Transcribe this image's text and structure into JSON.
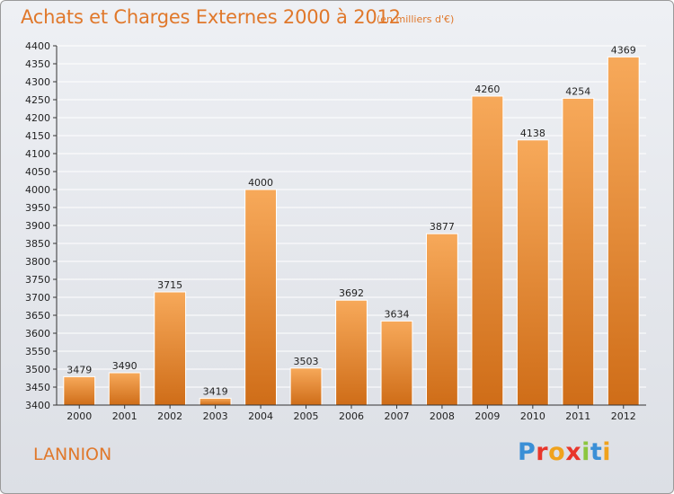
{
  "header": {
    "title": "Achats et Charges Externes 2000 à 2012",
    "subtitle": "(en milliers d'€)"
  },
  "footer": {
    "city": "LANNION",
    "logo_text": "Proxiti",
    "logo_letters": [
      {
        "ch": "P",
        "color": "#3a8fd6"
      },
      {
        "ch": "r",
        "color": "#e8362b"
      },
      {
        "ch": "o",
        "color": "#f0a21c"
      },
      {
        "ch": "x",
        "color": "#e8362b"
      },
      {
        "ch": "i",
        "color": "#8cc63f"
      },
      {
        "ch": "t",
        "color": "#3a8fd6"
      },
      {
        "ch": "i",
        "color": "#f0a21c"
      }
    ]
  },
  "chart_data": {
    "type": "bar",
    "categories": [
      "2000",
      "2001",
      "2002",
      "2003",
      "2004",
      "2005",
      "2006",
      "2007",
      "2008",
      "2009",
      "2010",
      "2011",
      "2012"
    ],
    "values": [
      3479,
      3490,
      3715,
      3419,
      4000,
      3503,
      3692,
      3634,
      3877,
      4260,
      4138,
      4254,
      4369
    ],
    "ylim": [
      3400,
      4400
    ],
    "yticks": [
      3400,
      3450,
      3500,
      3550,
      3600,
      3650,
      3700,
      3750,
      3800,
      3850,
      3900,
      3950,
      4000,
      4050,
      4100,
      4150,
      4200,
      4250,
      4300,
      4350,
      4400
    ],
    "grid": true,
    "colors": {
      "bar_light": "#f7a95a",
      "bar_dark": "#cf6d18",
      "grid": "#ffffff",
      "axis": "#333333",
      "text": "#222222",
      "accent": "#e0782b"
    }
  }
}
